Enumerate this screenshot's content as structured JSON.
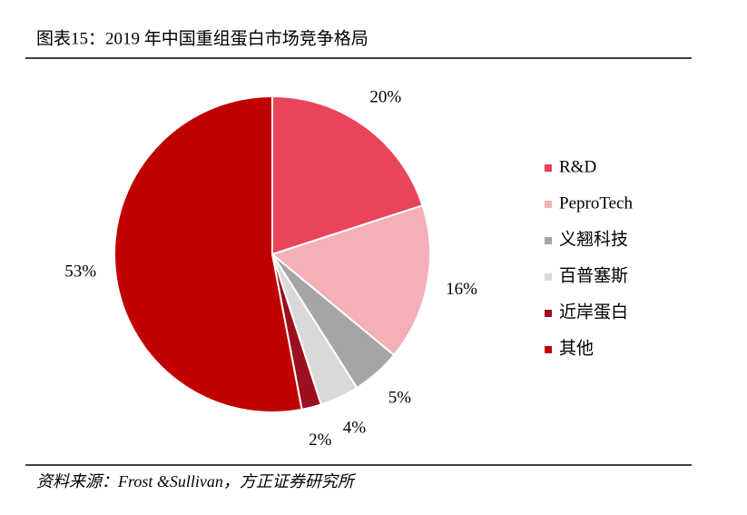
{
  "chart_data": {
    "type": "pie",
    "title": "图表15：2019 年中国重组蛋白市场竞争格局",
    "categories": [
      "R&D",
      "PeproTech",
      "义翘科技",
      "百普塞斯",
      "近岸蛋白",
      "其他"
    ],
    "values": [
      20,
      16,
      5,
      4,
      2,
      53
    ],
    "value_labels": [
      "20%",
      "16%",
      "5%",
      "4%",
      "2%",
      "53%"
    ],
    "colors": [
      "#e8445a",
      "#f5afb7",
      "#a5a5a5",
      "#d9d9d9",
      "#9c0f1f",
      "#c00000"
    ],
    "legend": "right",
    "source": "资料来源：Frost &Sullivan，方正证券研究所"
  }
}
